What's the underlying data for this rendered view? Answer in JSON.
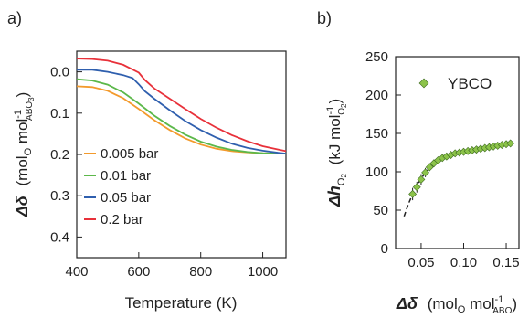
{
  "chart_data": [
    {
      "panel_label": "a)",
      "type": "line",
      "xlabel": "Temperature (K)",
      "ylabel": {
        "symbol": "Δδ",
        "text": "(mol",
        "sub1": "O",
        "mid": " mol",
        "sup": "-1",
        "sub2": "ABO",
        "sub3": "3",
        "close": ")"
      },
      "xlim": [
        400,
        1075
      ],
      "ylim": [
        0.45,
        -0.05
      ],
      "y_inverted": true,
      "xticks": [
        400,
        600,
        800,
        1000
      ],
      "yticks": [
        "0.0",
        "0.1",
        "0.2",
        "0.3",
        "0.4"
      ],
      "ytick_values": [
        0,
        0.1,
        0.2,
        0.3,
        0.4
      ],
      "grid": false,
      "legend_position": "lower-left",
      "series": [
        {
          "name": "0.005 bar",
          "color": "#f39a2c",
          "x": [
            400,
            450,
            500,
            550,
            600,
            650,
            700,
            750,
            800,
            850,
            900,
            950,
            1000,
            1050,
            1075
          ],
          "y": [
            0.035,
            0.037,
            0.046,
            0.064,
            0.09,
            0.117,
            0.141,
            0.161,
            0.176,
            0.186,
            0.192,
            0.195,
            0.197,
            0.198,
            0.198
          ]
        },
        {
          "name": "0.01 bar",
          "color": "#5cb84a",
          "x": [
            400,
            450,
            500,
            550,
            600,
            650,
            700,
            750,
            800,
            850,
            900,
            950,
            1000,
            1050,
            1075
          ],
          "y": [
            0.018,
            0.021,
            0.031,
            0.05,
            0.077,
            0.106,
            0.131,
            0.152,
            0.169,
            0.181,
            0.189,
            0.194,
            0.197,
            0.198,
            0.198
          ]
        },
        {
          "name": "0.05 bar",
          "color": "#2f5fae",
          "x": [
            400,
            450,
            500,
            550,
            580,
            600,
            620,
            650,
            700,
            750,
            800,
            850,
            900,
            950,
            1000,
            1050,
            1075
          ],
          "y": [
            -0.005,
            -0.005,
            0.0,
            0.008,
            0.015,
            0.03,
            0.047,
            0.065,
            0.093,
            0.119,
            0.141,
            0.159,
            0.174,
            0.184,
            0.191,
            0.196,
            0.198
          ]
        },
        {
          "name": "0.2 bar",
          "color": "#e8313a",
          "x": [
            400,
            450,
            500,
            550,
            600,
            620,
            650,
            700,
            750,
            800,
            850,
            900,
            950,
            1000,
            1050,
            1075
          ],
          "y": [
            -0.032,
            -0.031,
            -0.027,
            -0.017,
            0.002,
            0.02,
            0.04,
            0.065,
            0.09,
            0.114,
            0.135,
            0.153,
            0.168,
            0.18,
            0.188,
            0.192
          ]
        }
      ]
    },
    {
      "panel_label": "b)",
      "type": "scatter",
      "xlabel": {
        "symbol": "Δδ",
        "text": "(mol",
        "sub1": "O",
        "mid": " mol",
        "sup": "-1",
        "sub2": "ABO",
        "close": ")"
      },
      "ylabel": {
        "symbol": "Δh",
        "sub": "O",
        "sub2": "2",
        "text": "(kJ mol",
        "sup": "-1",
        "sub3": "O",
        "sub4": "2",
        "close": ")"
      },
      "xlim": [
        0.02,
        0.165
      ],
      "ylim": [
        0,
        250
      ],
      "xticks": [
        "0.05",
        "0.10",
        "0.15"
      ],
      "xtick_values": [
        0.05,
        0.1,
        0.15
      ],
      "yticks": [
        0,
        50,
        100,
        150,
        200,
        250
      ],
      "grid": false,
      "legend_position": "top-left",
      "series": [
        {
          "name": "YBCO",
          "color": "#8cc34a",
          "marker": "diamond",
          "x": [
            0.04,
            0.045,
            0.05,
            0.055,
            0.06,
            0.065,
            0.07,
            0.075,
            0.08,
            0.085,
            0.09,
            0.095,
            0.1,
            0.105,
            0.11,
            0.115,
            0.12,
            0.125,
            0.13,
            0.135,
            0.14,
            0.145,
            0.15,
            0.155
          ],
          "y": [
            71,
            80,
            90,
            99,
            106,
            111,
            115,
            118,
            120,
            122,
            124,
            125,
            126,
            127,
            128,
            129,
            130,
            131,
            132,
            133,
            134,
            135,
            136,
            137
          ],
          "err": [
            8,
            7,
            7,
            6,
            5,
            5,
            4,
            4,
            4,
            4,
            4,
            3,
            3,
            3,
            3,
            3,
            3,
            3,
            3,
            3,
            3,
            3,
            3,
            3
          ]
        }
      ],
      "fit": {
        "color": "#222222",
        "dash": true,
        "x": [
          0.03,
          0.035,
          0.04,
          0.045,
          0.05,
          0.055,
          0.06,
          0.07,
          0.08,
          0.09,
          0.1,
          0.11,
          0.12,
          0.13,
          0.14,
          0.15,
          0.16
        ],
        "y": [
          42,
          58,
          71,
          82,
          91,
          99,
          105,
          114,
          119,
          123,
          125,
          127,
          129,
          131,
          134,
          136,
          139
        ]
      }
    }
  ]
}
